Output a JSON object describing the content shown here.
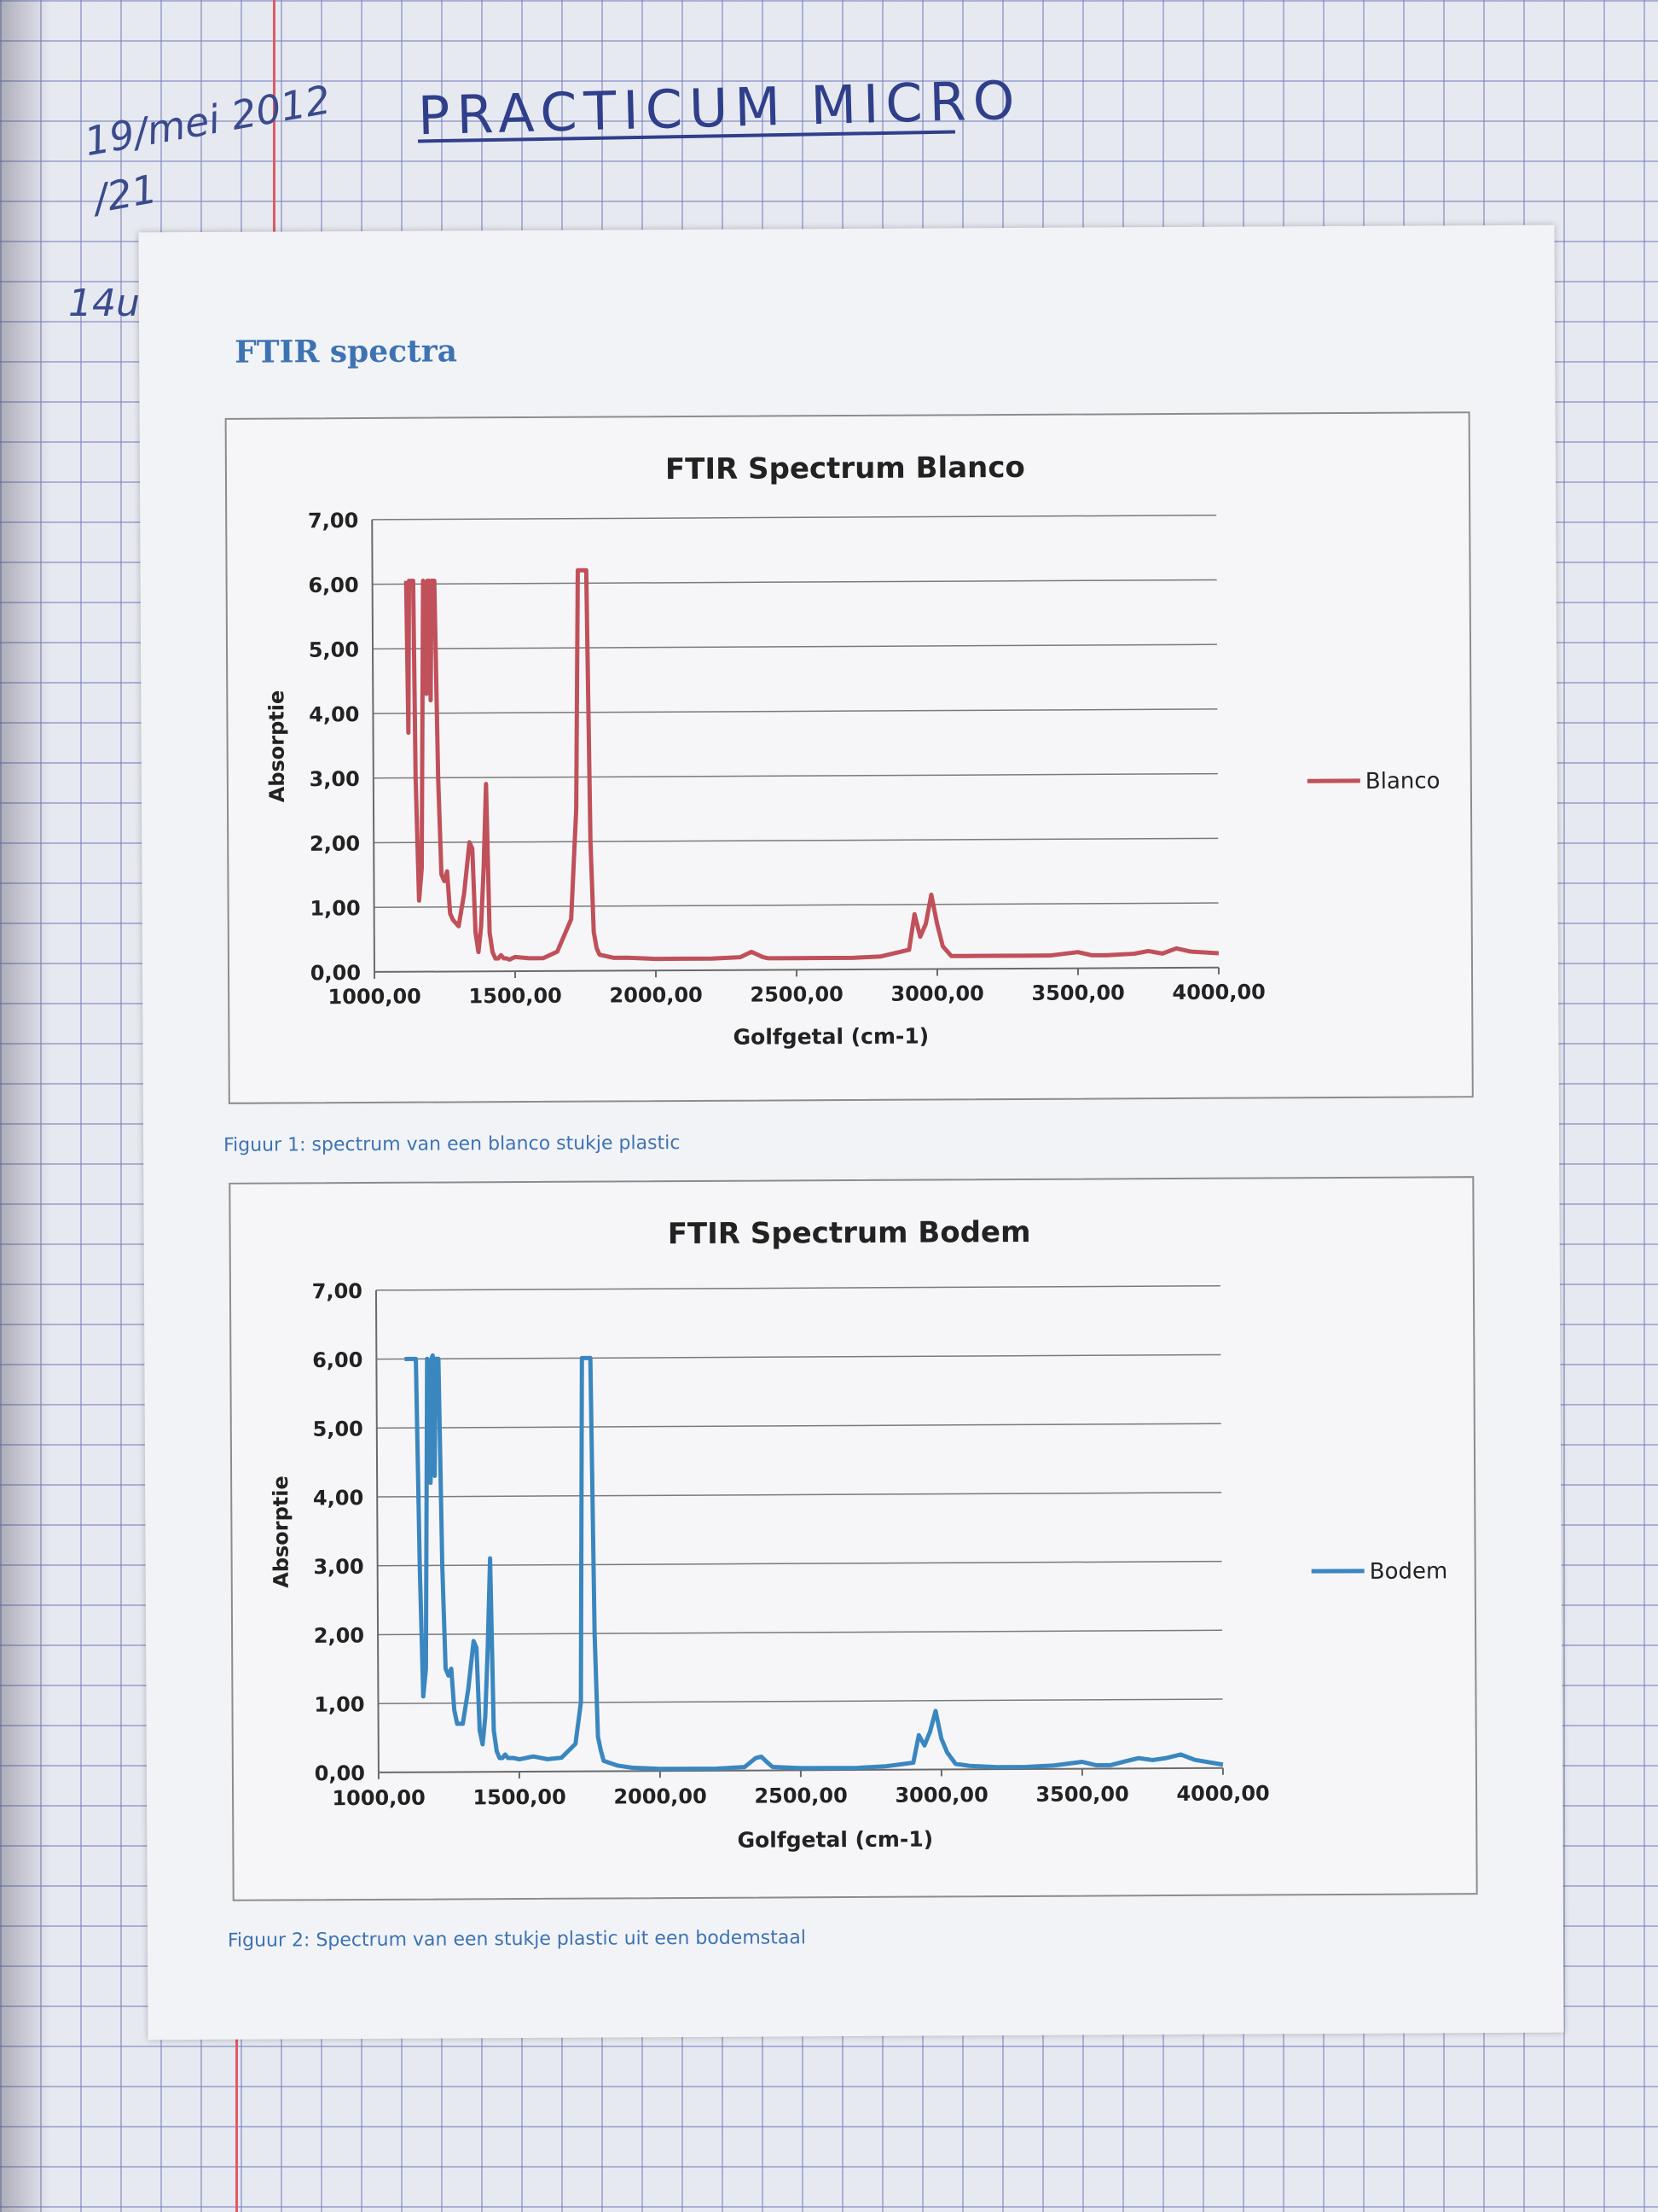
{
  "notebook": {
    "date_note": "19/mei 2012",
    "page_note": "/21",
    "time_note": "14u",
    "heading": "PRACTICUM   MICRO"
  },
  "sheet": {
    "section_title": "FTIR spectra",
    "captions": [
      "Figuur 1: spectrum van een blanco stukje plastic",
      "Figuur 2: Spectrum van een stukje plastic uit een bodemstaal"
    ]
  },
  "chart_data": [
    {
      "type": "line",
      "title": "FTIR Spectrum Blanco",
      "xlabel": "Golfgetal (cm-1)",
      "ylabel": "Absorptie",
      "xlim": [
        1000,
        4000
      ],
      "ylim": [
        0,
        7
      ],
      "x_ticks": [
        "1000,00",
        "1500,00",
        "2000,00",
        "2500,00",
        "3000,00",
        "3500,00",
        "4000,00"
      ],
      "y_ticks": [
        "0,00",
        "1,00",
        "2,00",
        "3,00",
        "4,00",
        "5,00",
        "6,00",
        "7,00"
      ],
      "grid": true,
      "legend_position": "right",
      "series": [
        {
          "name": "Blanco",
          "color": "#c0505a",
          "x": [
            1120,
            1125,
            1130,
            1135,
            1140,
            1145,
            1150,
            1160,
            1170,
            1180,
            1190,
            1195,
            1200,
            1205,
            1210,
            1220,
            1230,
            1240,
            1250,
            1260,
            1270,
            1280,
            1300,
            1320,
            1340,
            1350,
            1360,
            1370,
            1380,
            1390,
            1400,
            1410,
            1420,
            1430,
            1440,
            1450,
            1460,
            1470,
            1480,
            1500,
            1550,
            1600,
            1650,
            1700,
            1720,
            1730,
            1740,
            1750,
            1760,
            1770,
            1780,
            1790,
            1800,
            1850,
            1900,
            2000,
            2100,
            2200,
            2300,
            2340,
            2360,
            2380,
            2400,
            2500,
            2600,
            2700,
            2800,
            2900,
            2920,
            2940,
            2960,
            2980,
            3000,
            3020,
            3050,
            3100,
            3200,
            3300,
            3400,
            3500,
            3550,
            3600,
            3700,
            3750,
            3800,
            3850,
            3900,
            4000
          ],
          "y": [
            6.05,
            3.7,
            6.05,
            6.05,
            6.05,
            6.05,
            3.0,
            1.1,
            1.6,
            6.05,
            4.3,
            6.05,
            6.05,
            4.2,
            6.05,
            6.05,
            3.0,
            1.5,
            1.4,
            1.55,
            0.9,
            0.8,
            0.7,
            1.2,
            2.0,
            1.9,
            0.6,
            0.3,
            0.7,
            1.6,
            2.9,
            0.6,
            0.3,
            0.2,
            0.2,
            0.25,
            0.2,
            0.2,
            0.18,
            0.22,
            0.2,
            0.2,
            0.3,
            0.8,
            2.5,
            6.2,
            6.2,
            6.2,
            6.2,
            2.0,
            0.6,
            0.35,
            0.25,
            0.2,
            0.2,
            0.18,
            0.18,
            0.18,
            0.2,
            0.28,
            0.24,
            0.2,
            0.18,
            0.18,
            0.18,
            0.18,
            0.2,
            0.3,
            0.85,
            0.5,
            0.7,
            1.15,
            0.7,
            0.35,
            0.2,
            0.2,
            0.2,
            0.2,
            0.2,
            0.25,
            0.2,
            0.2,
            0.22,
            0.26,
            0.22,
            0.3,
            0.25,
            0.22
          ]
        }
      ]
    },
    {
      "type": "line",
      "title": "FTIR Spectrum Bodem",
      "xlabel": "Golfgetal (cm-1)",
      "ylabel": "Absorptie",
      "xlim": [
        1000,
        4000
      ],
      "ylim": [
        0,
        7
      ],
      "x_ticks": [
        "1000,00",
        "1500,00",
        "2000,00",
        "2500,00",
        "3000,00",
        "3500,00",
        "4000,00"
      ],
      "y_ticks": [
        "0,00",
        "1,00",
        "2,00",
        "3,00",
        "4,00",
        "5,00",
        "6,00",
        "7,00"
      ],
      "grid": true,
      "legend_position": "right",
      "series": [
        {
          "name": "Bodem",
          "color": "#3a87c0",
          "x": [
            1100,
            1120,
            1140,
            1150,
            1160,
            1170,
            1180,
            1190,
            1195,
            1200,
            1205,
            1210,
            1220,
            1230,
            1240,
            1250,
            1260,
            1270,
            1280,
            1300,
            1320,
            1340,
            1350,
            1360,
            1370,
            1380,
            1390,
            1400,
            1410,
            1420,
            1430,
            1440,
            1450,
            1460,
            1480,
            1500,
            1550,
            1600,
            1650,
            1700,
            1720,
            1730,
            1740,
            1750,
            1760,
            1770,
            1780,
            1790,
            1800,
            1850,
            1900,
            2000,
            2100,
            2200,
            2300,
            2340,
            2360,
            2380,
            2400,
            2500,
            2600,
            2700,
            2800,
            2900,
            2920,
            2940,
            2960,
            2980,
            3000,
            3020,
            3050,
            3100,
            3200,
            3300,
            3400,
            3500,
            3550,
            3600,
            3650,
            3700,
            3750,
            3800,
            3850,
            3900,
            4000
          ],
          "y": [
            6.0,
            6.0,
            6.0,
            3.0,
            1.1,
            1.5,
            6.0,
            4.2,
            6.0,
            6.05,
            4.3,
            6.0,
            6.0,
            3.0,
            1.5,
            1.4,
            1.5,
            0.9,
            0.7,
            0.7,
            1.2,
            1.9,
            1.8,
            0.6,
            0.4,
            0.8,
            1.8,
            3.1,
            0.6,
            0.3,
            0.2,
            0.2,
            0.25,
            0.2,
            0.2,
            0.18,
            0.22,
            0.18,
            0.2,
            0.4,
            1.0,
            6.0,
            6.0,
            6.0,
            6.0,
            2.0,
            0.5,
            0.3,
            0.15,
            0.08,
            0.05,
            0.03,
            0.03,
            0.03,
            0.05,
            0.18,
            0.2,
            0.12,
            0.05,
            0.03,
            0.03,
            0.03,
            0.05,
            0.1,
            0.5,
            0.35,
            0.55,
            0.85,
            0.45,
            0.25,
            0.08,
            0.05,
            0.03,
            0.03,
            0.05,
            0.1,
            0.05,
            0.05,
            0.1,
            0.15,
            0.12,
            0.15,
            0.2,
            0.12,
            0.05
          ]
        }
      ]
    }
  ]
}
